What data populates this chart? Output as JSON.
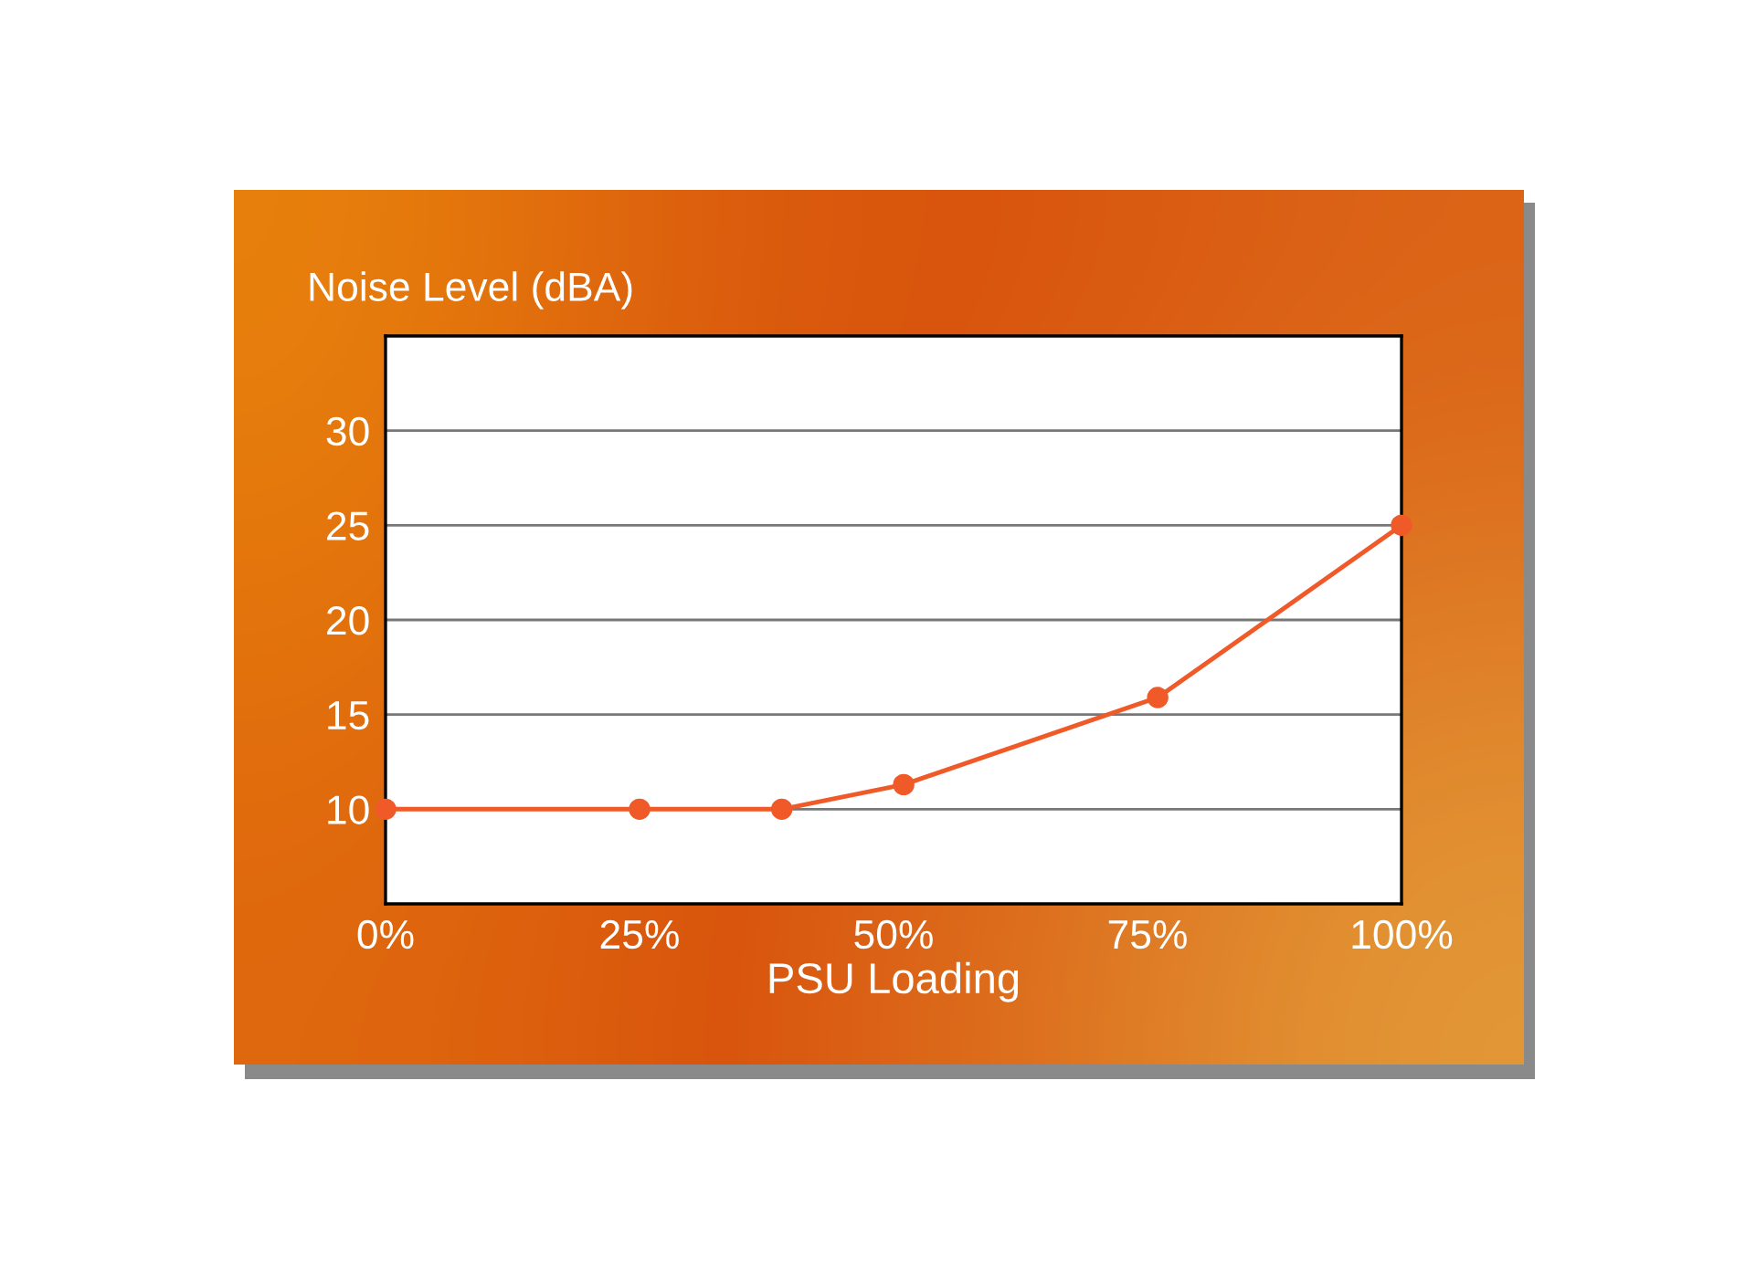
{
  "chart_data": {
    "type": "line",
    "ylabel": "Noise Level (dBA)",
    "xlabel": "PSU Loading",
    "x": [
      0,
      25,
      39,
      51,
      76,
      100
    ],
    "series": [
      {
        "color": "#f05a28",
        "values": [
          10,
          10,
          10,
          11.3,
          15.9,
          25
        ]
      }
    ],
    "xlim": [
      0,
      100
    ],
    "xticks": [
      {
        "value": 0,
        "label": "0%"
      },
      {
        "value": 25,
        "label": "25%"
      },
      {
        "value": 50,
        "label": "50%"
      },
      {
        "value": 75,
        "label": "75%"
      },
      {
        "value": 100,
        "label": "100%"
      }
    ],
    "ylim": [
      5,
      35
    ],
    "yticks": [
      10,
      15,
      20,
      25,
      30
    ],
    "grid": "y",
    "marker": "circle",
    "line_style": "solid",
    "legend": false
  }
}
